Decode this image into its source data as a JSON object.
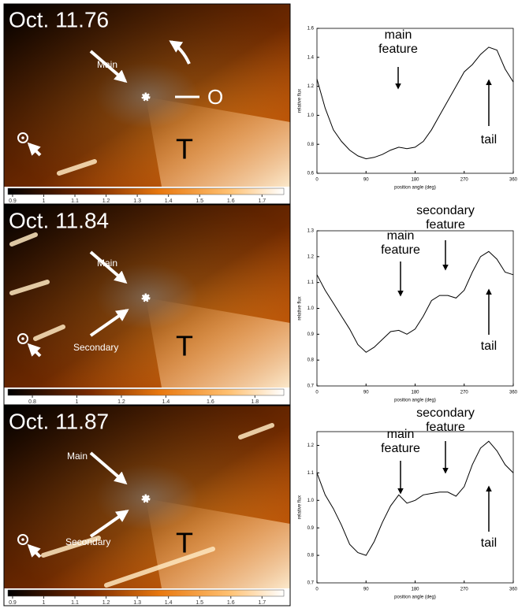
{
  "images": [
    {
      "date": "Oct. 11.76",
      "labels": [
        "Main",
        "O",
        "T"
      ],
      "colorbar": {
        "lim": [
          0.885,
          1.77
        ],
        "ticks": [
          0.9,
          1,
          1.1,
          1.2,
          1.3,
          1.4,
          1.5,
          1.6,
          1.7
        ]
      }
    },
    {
      "date": "Oct. 11.84",
      "labels": [
        "Main",
        "Secondary",
        "T"
      ],
      "colorbar": {
        "lim": [
          0.69,
          1.93
        ],
        "ticks": [
          0.8,
          1,
          1.2,
          1.4,
          1.6,
          1.8
        ]
      }
    },
    {
      "date": "Oct. 11.87",
      "labels": [
        "Main",
        "Secondary",
        "T"
      ],
      "colorbar": {
        "lim": [
          0.885,
          1.77
        ],
        "ticks": [
          0.9,
          1,
          1.1,
          1.2,
          1.3,
          1.4,
          1.5,
          1.6,
          1.7
        ]
      }
    }
  ],
  "chart_data": [
    {
      "type": "line",
      "xlabel": "position angle (deg)",
      "ylabel": "relative flux",
      "color": "#000000",
      "x": [
        0,
        15,
        30,
        45,
        60,
        75,
        90,
        105,
        120,
        135,
        150,
        165,
        180,
        195,
        210,
        225,
        240,
        255,
        270,
        285,
        300,
        315,
        330,
        345,
        360
      ],
      "values": [
        1.25,
        1.05,
        0.9,
        0.82,
        0.76,
        0.72,
        0.7,
        0.71,
        0.73,
        0.76,
        0.78,
        0.77,
        0.78,
        0.82,
        0.9,
        1.0,
        1.1,
        1.2,
        1.3,
        1.35,
        1.42,
        1.47,
        1.45,
        1.32,
        1.23
      ],
      "xlim": [
        0,
        360
      ],
      "xticks": [
        0,
        90,
        180,
        270,
        360
      ],
      "ylim": [
        0.6,
        1.6
      ],
      "yticks": [
        0.6,
        0.8,
        {
          "value": 1,
          "label": "1.0"
        },
        1.2,
        1.4,
        1.6
      ],
      "annotations": [
        [
          "main",
          "feature"
        ],
        [
          "tail"
        ]
      ]
    },
    {
      "type": "line",
      "xlabel": "position angle (deg)",
      "ylabel": "relative flux",
      "color": "#000000",
      "x": [
        0,
        15,
        30,
        45,
        60,
        75,
        90,
        105,
        120,
        135,
        150,
        165,
        180,
        195,
        210,
        225,
        240,
        255,
        270,
        285,
        300,
        315,
        330,
        345,
        360
      ],
      "values": [
        1.13,
        1.07,
        1.02,
        0.97,
        0.92,
        0.86,
        0.83,
        0.85,
        0.88,
        0.91,
        0.915,
        0.9,
        0.92,
        0.97,
        1.03,
        1.05,
        1.05,
        1.04,
        1.07,
        1.14,
        1.2,
        1.22,
        1.19,
        1.14,
        1.13
      ],
      "xlim": [
        0,
        360
      ],
      "xticks": [
        0,
        90,
        180,
        270,
        360
      ],
      "ylim": [
        0.7,
        1.3
      ],
      "yticks": [
        0.7,
        0.8,
        0.9,
        {
          "value": 1,
          "label": "1.0"
        },
        1.1,
        1.2,
        1.3
      ],
      "annotations": [
        [
          "secondary",
          "feature"
        ],
        [
          "main",
          "feature"
        ],
        [
          "tail"
        ]
      ]
    },
    {
      "type": "line",
      "xlabel": "position angle (deg)",
      "ylabel": "relative flux",
      "color": "#000000",
      "x": [
        0,
        15,
        30,
        45,
        60,
        75,
        90,
        105,
        120,
        135,
        150,
        165,
        180,
        195,
        210,
        225,
        240,
        255,
        270,
        285,
        300,
        315,
        330,
        345,
        360
      ],
      "values": [
        1.1,
        1.02,
        0.97,
        0.91,
        0.84,
        0.81,
        0.8,
        0.85,
        0.92,
        0.98,
        1.02,
        0.99,
        1.0,
        1.02,
        1.025,
        1.03,
        1.03,
        1.015,
        1.05,
        1.13,
        1.19,
        1.215,
        1.18,
        1.13,
        1.1
      ],
      "xlim": [
        0,
        360
      ],
      "xticks": [
        0,
        90,
        180,
        270,
        360
      ],
      "ylim": [
        0.7,
        1.25
      ],
      "yticks": [
        0.7,
        0.8,
        0.9,
        {
          "value": 1,
          "label": "1.0"
        },
        1.1,
        1.2
      ],
      "annotations": [
        [
          "secondary",
          "feature"
        ],
        [
          "main",
          "feature"
        ],
        [
          "tail"
        ]
      ]
    }
  ]
}
